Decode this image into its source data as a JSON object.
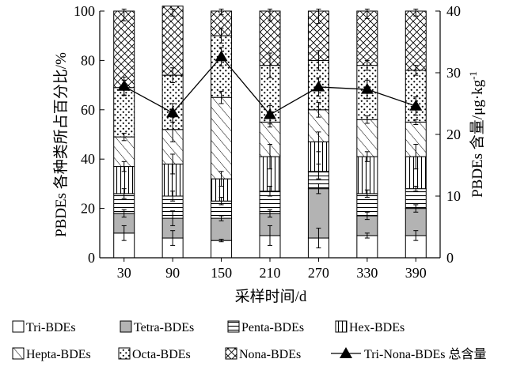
{
  "chart_data": {
    "type": "bar",
    "subtype": "stacked-percent-with-line",
    "categories": [
      "30",
      "90",
      "150",
      "210",
      "270",
      "330",
      "390"
    ],
    "xlabel": "采样时间/d",
    "ylabel_left": "PBDEs 各种类所占百分比/%",
    "ylabel_right": "PBDEs 含量/μg·kg⁻¹",
    "ylim_left": [
      0,
      100
    ],
    "ylim_right": [
      0,
      40
    ],
    "yticks_left": [
      0,
      20,
      40,
      60,
      80,
      100
    ],
    "yticks_right": [
      0,
      10,
      20,
      30,
      40
    ],
    "series": [
      {
        "name": "Tri-BDEs",
        "pattern": "none",
        "values": [
          10,
          8,
          7,
          9,
          8,
          9,
          9
        ],
        "errors": [
          3,
          3,
          0.5,
          4,
          4,
          1,
          2
        ]
      },
      {
        "name": "Tetra-BDEs",
        "pattern": "solid-gray",
        "values": [
          8,
          8,
          9,
          9,
          20,
          8,
          11
        ],
        "errors": [
          1.5,
          3,
          1,
          1.5,
          2,
          1.5,
          1.5
        ]
      },
      {
        "name": "Penta-BDEs",
        "pattern": "hlines",
        "values": [
          8,
          9,
          7,
          9,
          7,
          9,
          8
        ],
        "errors": [
          2,
          2,
          1.5,
          2,
          3,
          1.5,
          1
        ]
      },
      {
        "name": "Hex-BDEs",
        "pattern": "vlines",
        "values": [
          11,
          13,
          9,
          14,
          12,
          15,
          13
        ],
        "errors": [
          2,
          4,
          3,
          5,
          4,
          2,
          5
        ]
      },
      {
        "name": "Hepta-BDEs",
        "pattern": "diagonal",
        "values": [
          12,
          14,
          33,
          14,
          13,
          15,
          14
        ],
        "errors": [
          1.5,
          5,
          2.5,
          2,
          3,
          1.5,
          1
        ]
      },
      {
        "name": "Octa-BDEs",
        "pattern": "dots",
        "values": [
          20,
          22,
          25,
          23,
          20,
          22,
          21
        ],
        "errors": [
          3,
          3,
          3,
          5,
          4,
          2,
          2
        ]
      },
      {
        "name": "Nona-BDEs",
        "pattern": "crosshatch",
        "values": [
          31,
          28,
          10,
          22,
          20,
          22,
          24
        ],
        "errors": [
          4,
          4,
          1.5,
          4,
          5,
          3,
          2
        ]
      }
    ],
    "line": {
      "name": "Tri-Nona-BDEs 总含量",
      "axis": "right",
      "values": [
        27.8,
        23.5,
        32.6,
        23.2,
        27.7,
        27.3,
        24.6
      ],
      "errors": [
        1.5,
        1.5,
        1.5,
        1.5,
        1.5,
        1.5,
        1.5
      ]
    },
    "legend": [
      {
        "name": "Tri-BDEs",
        "pattern": "none"
      },
      {
        "name": "Tetra-BDEs",
        "pattern": "solid-gray"
      },
      {
        "name": "Penta-BDEs",
        "pattern": "hlines"
      },
      {
        "name": "Hex-BDEs",
        "pattern": "vlines"
      },
      {
        "name": "Hepta-BDEs",
        "pattern": "diagonal"
      },
      {
        "name": "Octa-BDEs",
        "pattern": "dots"
      },
      {
        "name": "Nona-BDEs",
        "pattern": "crosshatch"
      },
      {
        "name": "Tri-Nona-BDEs 总含量",
        "pattern": "line-triangle"
      }
    ],
    "legend_position": "bottom",
    "grid": false,
    "colors": {
      "ink": "#000000",
      "tetra_fill": "#b3b3b3",
      "background": "#ffffff"
    }
  }
}
